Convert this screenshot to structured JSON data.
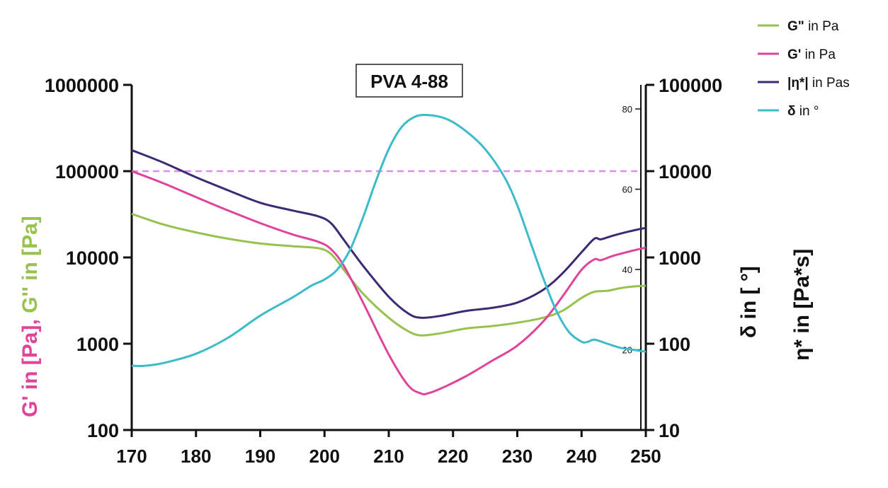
{
  "chart_data": {
    "type": "line",
    "title": "PVA 4-88",
    "xlim": [
      170,
      250
    ],
    "x_ticks": [
      "170",
      "180",
      "190",
      "200",
      "210",
      "220",
      "230",
      "240",
      "250"
    ],
    "y_left": {
      "scale": "log",
      "ylim": [
        100,
        1000000
      ],
      "ticks": [
        "100",
        "1000",
        "10000",
        "100000",
        "1000000"
      ],
      "label_parts": [
        {
          "text": "G' in [Pa]",
          "color": "#e0449a"
        },
        {
          "text": ", ",
          "color": "#e0449a"
        },
        {
          "text": "G'' in [Pa]",
          "color": "#96c24d"
        }
      ]
    },
    "y_delta": {
      "scale": "linear",
      "ylim": [
        0,
        86
      ],
      "ticks": [
        "20",
        "40",
        "60",
        "80"
      ],
      "label": "δ in [ °]",
      "color": "#3bbcc8"
    },
    "y_eta": {
      "scale": "log",
      "ylim": [
        10,
        100000
      ],
      "ticks": [
        "10",
        "100",
        "1000",
        "10000",
        "100000"
      ],
      "label": "η* in [Pa*s]",
      "color": "#3d2a73"
    },
    "reference_line": {
      "axis": "eta",
      "value": 10000,
      "color": "#e08bf0",
      "style": "dashed"
    },
    "legend": [
      {
        "symbol": "G\"",
        "suffix": " in Pa",
        "color": "#96c24d",
        "series": "G''"
      },
      {
        "symbol": "G'",
        "suffix": " in Pa",
        "color": "#e0449a",
        "series": "G'"
      },
      {
        "symbol": "|η*|",
        "suffix": " in Pas",
        "color": "#3d2a73",
        "series": "eta"
      },
      {
        "symbol": "δ",
        "suffix": " in °",
        "color": "#3bbcc8",
        "series": "delta"
      }
    ],
    "legend_position": "top-right",
    "series": [
      {
        "name": "G''",
        "axis": "left",
        "color": "#96c24d",
        "x": [
          170,
          175,
          180,
          185,
          190,
          195,
          199,
          201,
          203,
          206,
          210,
          213,
          215,
          218,
          222,
          226,
          230,
          234,
          237,
          240,
          242,
          244,
          246,
          248,
          250
        ],
        "y": [
          32000,
          24000,
          19500,
          16500,
          14500,
          13500,
          12800,
          11000,
          7200,
          3800,
          2000,
          1400,
          1250,
          1320,
          1500,
          1600,
          1750,
          2000,
          2400,
          3400,
          4000,
          4100,
          4400,
          4600,
          4700
        ]
      },
      {
        "name": "G'",
        "axis": "left",
        "color": "#e0449a",
        "x": [
          170,
          175,
          180,
          185,
          190,
          195,
          199,
          201,
          203,
          206,
          210,
          213,
          215,
          216,
          218,
          222,
          226,
          230,
          234,
          237,
          240,
          242,
          243,
          245,
          248,
          250
        ],
        "y": [
          100000,
          72000,
          50000,
          35000,
          25000,
          18500,
          15200,
          12500,
          8000,
          3000,
          750,
          330,
          265,
          265,
          300,
          420,
          630,
          950,
          1800,
          3500,
          7200,
          9500,
          9300,
          10500,
          12000,
          13000
        ]
      },
      {
        "name": "eta",
        "axis": "eta",
        "color": "#3d2a73",
        "x": [
          170,
          175,
          180,
          185,
          190,
          195,
          199,
          201,
          203,
          206,
          210,
          213,
          215,
          218,
          222,
          226,
          230,
          234,
          237,
          240,
          242,
          243,
          245,
          248,
          250
        ],
        "y": [
          17500,
          12500,
          8500,
          6000,
          4300,
          3500,
          3000,
          2500,
          1600,
          800,
          350,
          225,
          200,
          210,
          240,
          260,
          300,
          420,
          650,
          1150,
          1650,
          1620,
          1800,
          2050,
          2200
        ]
      },
      {
        "name": "delta",
        "axis": "delta",
        "color": "#3bbcc8",
        "x": [
          170,
          172,
          175,
          180,
          185,
          190,
          195,
          198,
          200,
          202,
          204,
          206,
          208,
          210,
          212,
          214,
          216,
          219,
          222,
          225,
          228,
          230,
          232,
          234,
          236,
          238,
          240,
          241,
          242,
          244,
          246,
          248,
          250
        ],
        "y": [
          16,
          16,
          16.7,
          19,
          23,
          28.5,
          33,
          36,
          37.5,
          40,
          45,
          53,
          62,
          70,
          75.5,
          78,
          78.5,
          77.5,
          74.5,
          70,
          63,
          56,
          47,
          38,
          30,
          24.5,
          22,
          22,
          22.5,
          21.5,
          20.5,
          20,
          19.5
        ]
      }
    ]
  }
}
